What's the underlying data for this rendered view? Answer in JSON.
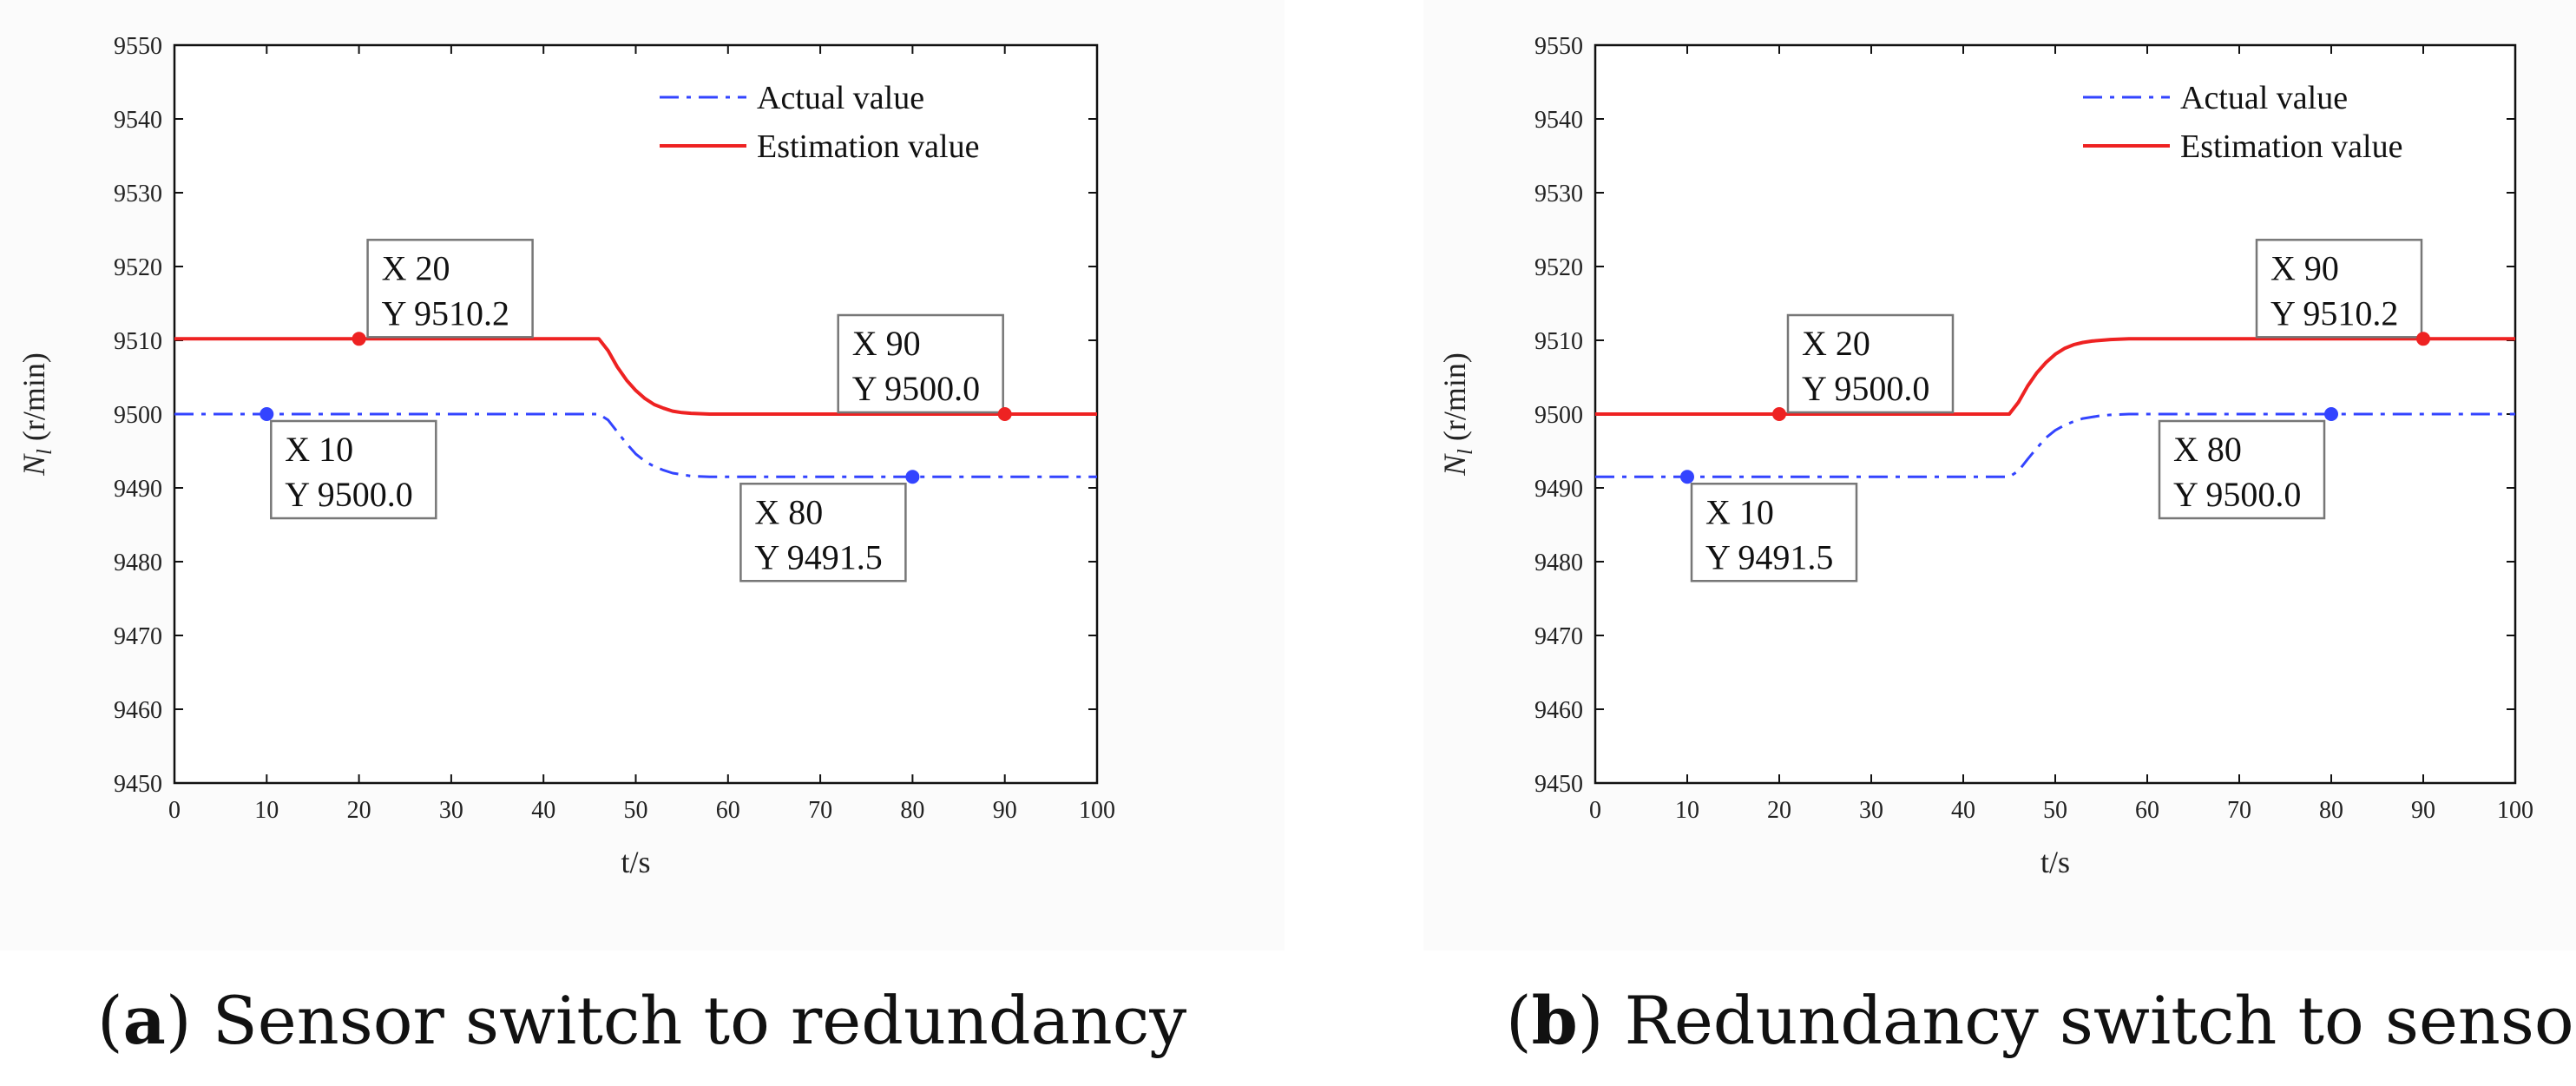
{
  "captions": [
    {
      "letter": "a",
      "text": "Sensor switch to redundancy"
    },
    {
      "letter": "b",
      "text": "Redundancy switch to sensor"
    }
  ],
  "chart_data": [
    {
      "type": "line",
      "panel": "a",
      "xlabel": "t/s",
      "ylabel_main": "N",
      "ylabel_sub": "l",
      "ylabel_unit": " (r/min)",
      "xlim": [
        0,
        100
      ],
      "ylim": [
        9450,
        9550
      ],
      "xticks": [
        0,
        10,
        20,
        30,
        40,
        50,
        60,
        70,
        80,
        90,
        100
      ],
      "yticks": [
        9450,
        9460,
        9470,
        9480,
        9490,
        9500,
        9510,
        9520,
        9530,
        9540,
        9550
      ],
      "legend_position": "top-right",
      "series": [
        {
          "name": "Actual value",
          "color": "#3344ff",
          "style": "dashdot",
          "x": [
            0,
            46,
            47,
            48,
            49,
            50,
            51,
            52,
            53,
            54,
            55,
            56,
            58,
            60,
            65,
            100
          ],
          "y": [
            9500.0,
            9500.0,
            9499.2,
            9497.6,
            9496.0,
            9494.6,
            9493.6,
            9492.9,
            9492.4,
            9492.0,
            9491.8,
            9491.6,
            9491.5,
            9491.5,
            9491.5,
            9491.5
          ]
        },
        {
          "name": "Estimation value",
          "color": "#ee2222",
          "style": "solid",
          "x": [
            0,
            46,
            47,
            48,
            49,
            50,
            51,
            52,
            53,
            54,
            55,
            56,
            58,
            60,
            65,
            100
          ],
          "y": [
            9510.2,
            9510.2,
            9508.6,
            9506.4,
            9504.6,
            9503.2,
            9502.1,
            9501.3,
            9500.8,
            9500.4,
            9500.2,
            9500.1,
            9500.0,
            9500.0,
            9500.0,
            9500.0
          ]
        }
      ],
      "datatips": [
        {
          "series": "Actual value",
          "x": 10,
          "y": 9500.0,
          "x_label": "X 10",
          "y_label": "Y 9500.0",
          "place": "below-right"
        },
        {
          "series": "Estimation value",
          "x": 20,
          "y": 9510.2,
          "x_label": "X 20",
          "y_label": "Y 9510.2",
          "place": "above-right"
        },
        {
          "series": "Actual value",
          "x": 80,
          "y": 9491.5,
          "x_label": "X 80",
          "y_label": "Y 9491.5",
          "place": "below-left"
        },
        {
          "series": "Estimation value",
          "x": 90,
          "y": 9500.0,
          "x_label": "X 90",
          "y_label": "Y 9500.0",
          "place": "above-left"
        }
      ]
    },
    {
      "type": "line",
      "panel": "b",
      "xlabel": "t/s",
      "ylabel_main": "N",
      "ylabel_sub": "l",
      "ylabel_unit": " (r/min)",
      "xlim": [
        0,
        100
      ],
      "ylim": [
        9450,
        9550
      ],
      "xticks": [
        0,
        10,
        20,
        30,
        40,
        50,
        60,
        70,
        80,
        90,
        100
      ],
      "yticks": [
        9450,
        9460,
        9470,
        9480,
        9490,
        9500,
        9510,
        9520,
        9530,
        9540,
        9550
      ],
      "legend_position": "top-right",
      "series": [
        {
          "name": "Actual value",
          "color": "#3344ff",
          "style": "dashdot",
          "x": [
            0,
            45,
            46,
            47,
            48,
            49,
            50,
            51,
            52,
            53,
            54,
            55,
            56,
            58,
            60,
            65,
            100
          ],
          "y": [
            9491.5,
            9491.5,
            9492.3,
            9493.9,
            9495.4,
            9496.8,
            9497.8,
            9498.5,
            9499.0,
            9499.4,
            9499.6,
            9499.8,
            9499.9,
            9500.0,
            9500.0,
            9500.0,
            9500.0
          ]
        },
        {
          "name": "Estimation value",
          "color": "#ee2222",
          "style": "solid",
          "x": [
            0,
            45,
            46,
            47,
            48,
            49,
            50,
            51,
            52,
            53,
            54,
            55,
            56,
            58,
            60,
            65,
            100
          ],
          "y": [
            9500.0,
            9500.0,
            9501.6,
            9503.8,
            9505.6,
            9507.0,
            9508.1,
            9508.9,
            9509.4,
            9509.7,
            9509.9,
            9510.0,
            9510.1,
            9510.2,
            9510.2,
            9510.2,
            9510.2
          ]
        }
      ],
      "datatips": [
        {
          "series": "Actual value",
          "x": 10,
          "y": 9491.5,
          "x_label": "X 10",
          "y_label": "Y 9491.5",
          "place": "below-right"
        },
        {
          "series": "Estimation value",
          "x": 20,
          "y": 9500.0,
          "x_label": "X 20",
          "y_label": "Y 9500.0",
          "place": "above-right"
        },
        {
          "series": "Actual value",
          "x": 80,
          "y": 9500.0,
          "x_label": "X 80",
          "y_label": "Y 9500.0",
          "place": "below-left"
        },
        {
          "series": "Estimation value",
          "x": 90,
          "y": 9510.2,
          "x_label": "X 90",
          "y_label": "Y 9510.2",
          "place": "above-left"
        }
      ]
    }
  ]
}
